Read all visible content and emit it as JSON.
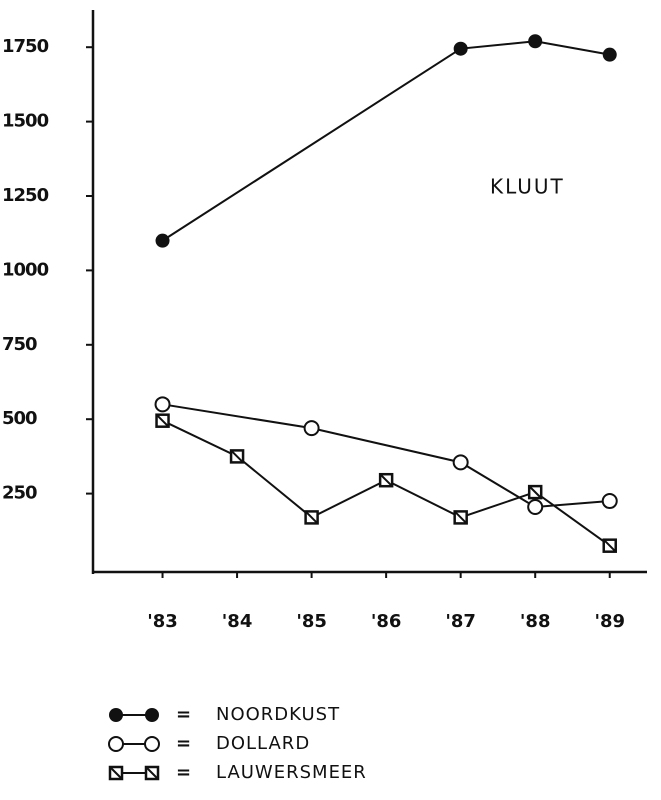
{
  "chart_data": {
    "type": "line",
    "annotation": "KLUUT",
    "xlim": [
      82,
      89.5
    ],
    "xticks": [
      {
        "value": 83,
        "label": "'83"
      },
      {
        "value": 84,
        "label": "'84"
      },
      {
        "value": 85,
        "label": "'85"
      },
      {
        "value": 86,
        "label": "'86"
      },
      {
        "value": 87,
        "label": "'87"
      },
      {
        "value": 88,
        "label": "'88"
      },
      {
        "value": 89,
        "label": "'89"
      }
    ],
    "ylim": [
      0,
      1875
    ],
    "yticks": [
      250,
      500,
      750,
      1000,
      1250,
      1500,
      1750
    ],
    "legend_separator": "=",
    "series": [
      {
        "name": "NOORDKUST",
        "color": "#111111",
        "marker": "filled-circle",
        "x": [
          83,
          87,
          88,
          89
        ],
        "values": [
          1100,
          1745,
          1770,
          1725
        ]
      },
      {
        "name": "DOLLARD",
        "color": "#111111",
        "marker": "open-circle",
        "x": [
          83,
          85,
          87,
          88,
          89
        ],
        "values": [
          550,
          470,
          355,
          205,
          225
        ]
      },
      {
        "name": "LAUWERSMEER",
        "color": "#111111",
        "marker": "square",
        "x": [
          83,
          84,
          85,
          86,
          87,
          88,
          89
        ],
        "values": [
          495,
          375,
          170,
          295,
          170,
          255,
          75
        ]
      }
    ]
  }
}
